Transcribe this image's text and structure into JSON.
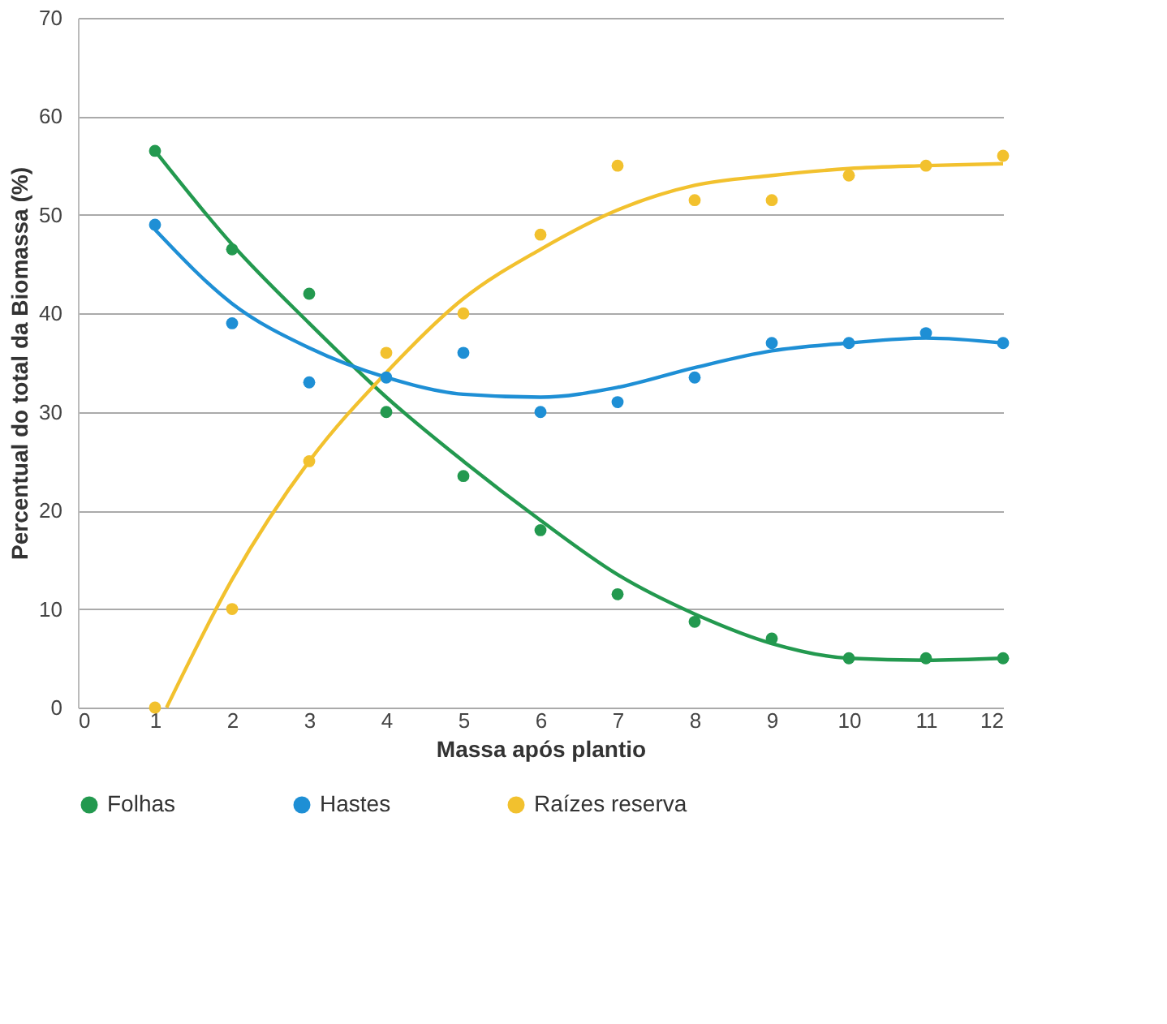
{
  "chart_data": {
    "type": "scatter",
    "xlabel": "Massa após plantio",
    "ylabel": "Percentual do total da Biomassa (%)",
    "x": [
      1,
      2,
      3,
      4,
      5,
      6,
      7,
      8,
      9,
      10,
      11,
      12
    ],
    "series": [
      {
        "name": "Folhas",
        "color": "#23994f",
        "marker": "circle",
        "values": [
          56.5,
          46.5,
          42,
          30,
          23.5,
          18,
          11.5,
          8.7,
          7,
          5,
          5,
          5
        ]
      },
      {
        "name": "Hastes",
        "color": "#1e8fd5",
        "marker": "circle",
        "values": [
          49,
          39,
          33,
          33.5,
          36,
          30,
          31,
          33.5,
          37,
          37,
          38,
          37
        ]
      },
      {
        "name": "Raízes reserva",
        "color": "#f2c12e",
        "marker": "circle",
        "values": [
          0,
          10,
          25,
          36,
          40,
          48,
          55,
          51.5,
          51.5,
          54,
          55,
          56
        ]
      },
      {
        "type": "line",
        "color": "#23994f",
        "marker": "none",
        "line_style": "solid",
        "x": [
          1,
          2,
          3,
          4,
          5,
          6,
          7,
          8,
          9,
          10,
          11,
          12
        ],
        "values": [
          56.5,
          47,
          39,
          31.5,
          25,
          19,
          13.5,
          9.5,
          6.5,
          5,
          4.8,
          5
        ]
      },
      {
        "type": "line",
        "color": "#1e8fd5",
        "marker": "none",
        "line_style": "solid",
        "x": [
          1,
          2,
          3,
          4,
          5,
          6,
          7,
          8,
          9,
          10,
          11,
          12
        ],
        "values": [
          48.5,
          41,
          36.5,
          33.5,
          31.8,
          31.5,
          32.5,
          34.5,
          36.2,
          37,
          37.5,
          37
        ]
      },
      {
        "type": "line",
        "color": "#f2c12e",
        "marker": "none",
        "line_style": "solid",
        "x": [
          1.15,
          2,
          3,
          4,
          5,
          6,
          7,
          8,
          9,
          10,
          11,
          12
        ],
        "values": [
          0,
          13,
          25,
          34,
          41.5,
          46.5,
          50.5,
          53,
          54,
          54.7,
          55,
          55.2
        ]
      }
    ],
    "xlim": [
      0,
      12
    ],
    "xticks": [
      0,
      1,
      2,
      3,
      4,
      5,
      6,
      7,
      8,
      9,
      10,
      11,
      12
    ],
    "ylim": [
      0,
      70
    ],
    "yticks": [
      0,
      10,
      20,
      30,
      40,
      50,
      60,
      70
    ],
    "grid": "y",
    "legend": "bottom"
  }
}
